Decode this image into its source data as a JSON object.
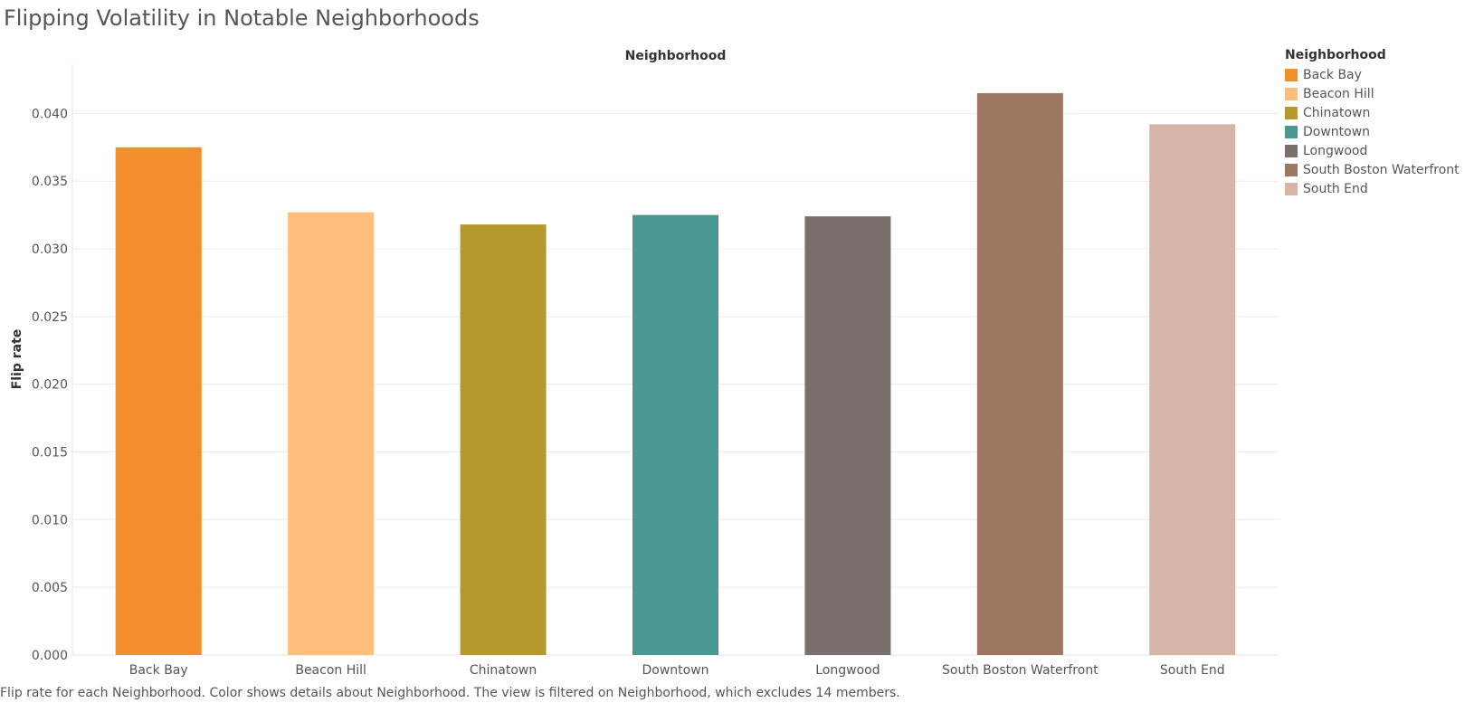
{
  "chart_data": {
    "type": "bar",
    "title": "Flipping Volatility in Notable Neighborhoods",
    "xlabel": "Neighborhood",
    "ylabel": "Flip rate",
    "categories": [
      "Back Bay",
      "Beacon Hill",
      "Chinatown",
      "Downtown",
      "Longwood",
      "South Boston Waterfront",
      "South End"
    ],
    "values": [
      0.0375,
      0.0327,
      0.0318,
      0.0325,
      0.0324,
      0.0415,
      0.0392
    ],
    "colors": [
      "#f28e2b",
      "#ffbe7d",
      "#b6992d",
      "#499894",
      "#79706e",
      "#9d7660",
      "#d7b5a6"
    ],
    "ylim": [
      0,
      0.0437
    ],
    "yticks": [
      "0.000",
      "0.005",
      "0.010",
      "0.015",
      "0.020",
      "0.025",
      "0.030",
      "0.035",
      "0.040"
    ],
    "grid": true,
    "legend": {
      "title": "Neighborhood",
      "position": "right",
      "items": [
        "Back Bay",
        "Beacon Hill",
        "Chinatown",
        "Downtown",
        "Longwood",
        "South Boston Waterfront",
        "South End"
      ]
    }
  },
  "caption": "Flip rate for each Neighborhood.  Color shows details about Neighborhood. The view is filtered on Neighborhood, which excludes 14 members."
}
